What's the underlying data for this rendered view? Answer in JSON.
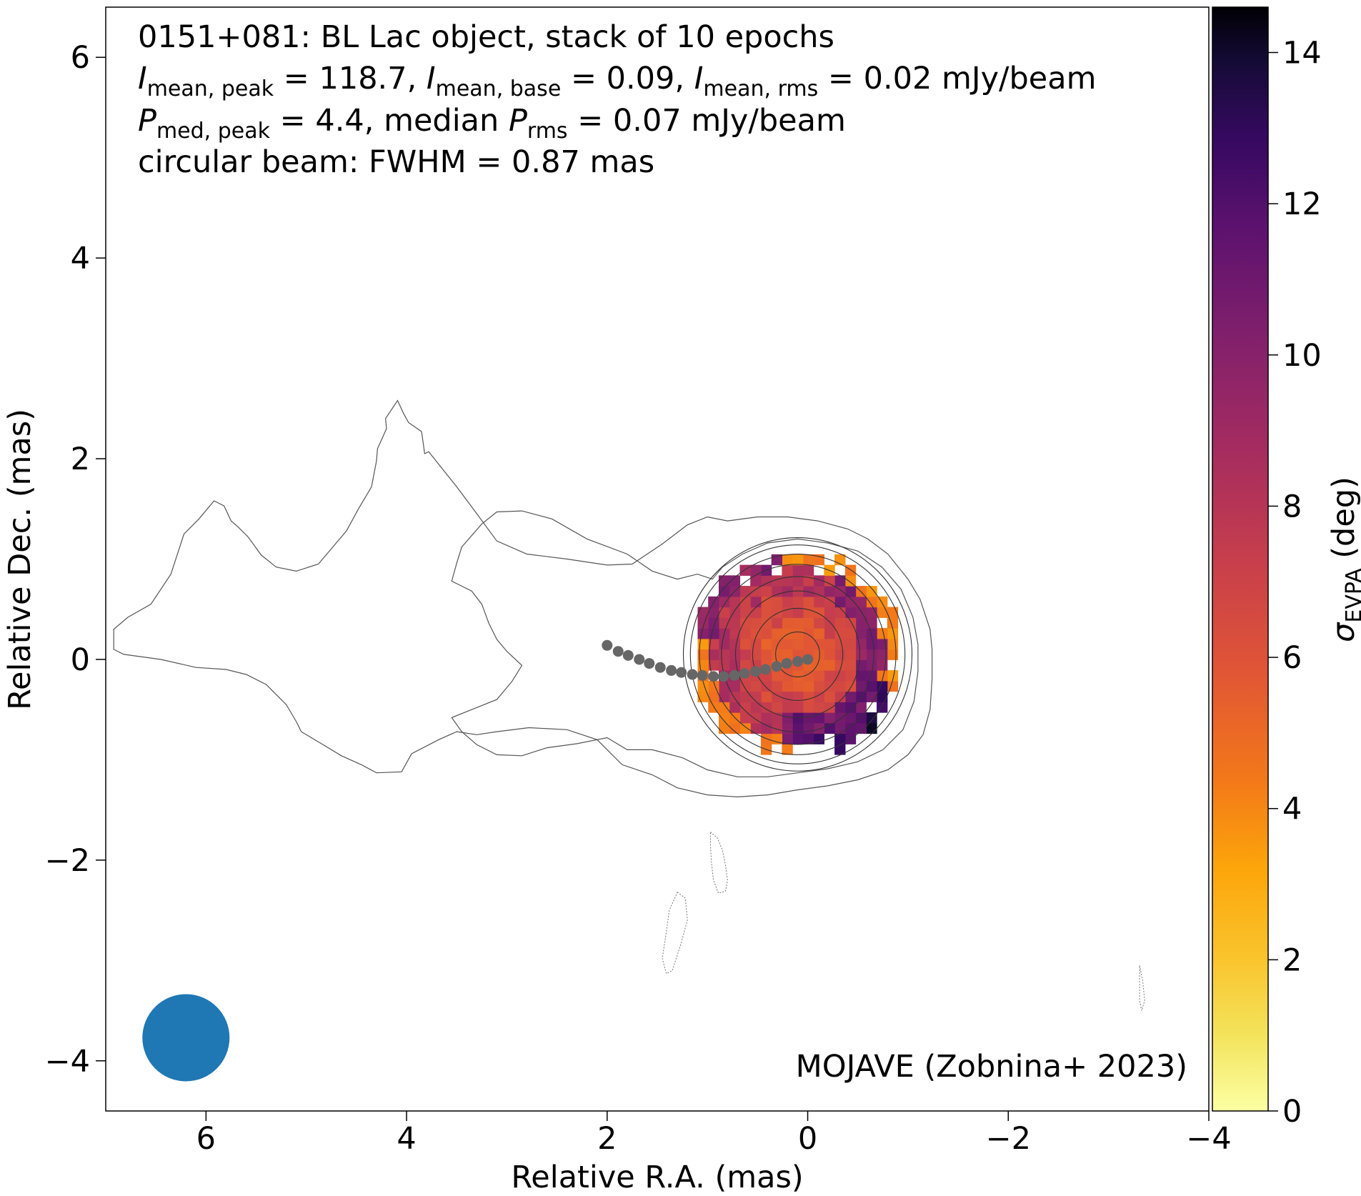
{
  "chart_data": {
    "type": "heatmap",
    "title_lines": {
      "line1": "0151+081: BL Lac object, stack of 10 epochs",
      "line2": {
        "sym": "I",
        "sub1": "mean, peak",
        "val1": " = 118.7, ",
        "sub2": "mean, base",
        "val2": " = 0.09, ",
        "sub3": "mean, rms",
        "val3": " = 0.02 mJy/beam"
      },
      "line3": {
        "sym": "P",
        "sub1": "med, peak",
        "val1": " = 4.4, median ",
        "sub2": "rms",
        "val2": " = 0.07 mJy/beam"
      },
      "line4": "circular beam: FWHM = 0.87 mas"
    },
    "credit": "MOJAVE (Zobnina+ 2023)",
    "xlabel": "Relative R.A. (mas)",
    "ylabel": "Relative Dec. (mas)",
    "xlim": [
      7,
      -4
    ],
    "ylim": [
      -4.5,
      6.5
    ],
    "xticks": [
      6,
      4,
      2,
      0,
      -2,
      -4
    ],
    "yticks": [
      -4,
      -2,
      0,
      2,
      4,
      6
    ],
    "colorbar": {
      "label_sym": "σ",
      "label_sub": "EVPA",
      "label_unit": " (deg)",
      "range": [
        0,
        14.6
      ],
      "ticks": [
        0,
        2,
        4,
        6,
        8,
        10,
        12,
        14
      ],
      "colormap": "inferno_r"
    },
    "beam": {
      "fwhm_mas": 0.87,
      "x": 6.2,
      "y": -3.77,
      "color": "#1f77b4"
    },
    "ridgeline": {
      "color": "#666666",
      "points": [
        [
          2.0,
          0.14
        ],
        [
          1.89,
          0.08
        ],
        [
          1.79,
          0.04
        ],
        [
          1.68,
          0.0
        ],
        [
          1.58,
          -0.04
        ],
        [
          1.47,
          -0.08
        ],
        [
          1.36,
          -0.11
        ],
        [
          1.26,
          -0.13
        ],
        [
          1.15,
          -0.15
        ],
        [
          1.05,
          -0.16
        ],
        [
          0.94,
          -0.17
        ],
        [
          0.84,
          -0.17
        ],
        [
          0.73,
          -0.16
        ],
        [
          0.63,
          -0.14
        ],
        [
          0.52,
          -0.12
        ],
        [
          0.42,
          -0.1
        ],
        [
          0.31,
          -0.07
        ],
        [
          0.21,
          -0.04
        ],
        [
          0.1,
          -0.02
        ],
        [
          0.0,
          0.0
        ]
      ]
    },
    "core": {
      "x": 0.1,
      "y": 0.05
    },
    "core_contour_radii": [
      0.22,
      0.45,
      0.62,
      0.76,
      0.88,
      0.98,
      1.07,
      1.14
    ],
    "dashed_contours": [
      [
        [
          0.97,
          -1.72
        ],
        [
          0.9,
          -1.78
        ],
        [
          0.85,
          -1.9
        ],
        [
          0.82,
          -2.05
        ],
        [
          0.8,
          -2.2
        ],
        [
          0.82,
          -2.31
        ],
        [
          0.89,
          -2.33
        ],
        [
          0.94,
          -2.2
        ],
        [
          0.96,
          -2.02
        ],
        [
          0.97,
          -1.85
        ]
      ],
      [
        [
          1.3,
          -2.32
        ],
        [
          1.22,
          -2.38
        ],
        [
          1.2,
          -2.6
        ],
        [
          1.26,
          -2.82
        ],
        [
          1.35,
          -3.1
        ],
        [
          1.41,
          -3.13
        ],
        [
          1.45,
          -2.98
        ],
        [
          1.41,
          -2.72
        ],
        [
          1.38,
          -2.5
        ]
      ],
      [
        [
          -3.31,
          -3.05
        ],
        [
          -3.34,
          -3.2
        ],
        [
          -3.36,
          -3.4
        ],
        [
          -3.33,
          -3.5
        ],
        [
          -3.31,
          -3.4
        ],
        [
          -3.31,
          -3.2
        ]
      ]
    ],
    "outer_contour": [
      [
        0.8,
        1.38
      ],
      [
        1.0,
        1.42
      ],
      [
        1.2,
        1.34
      ],
      [
        1.45,
        1.15
      ],
      [
        1.75,
        0.95
      ],
      [
        2.0,
        0.94
      ],
      [
        2.4,
        1.0
      ],
      [
        2.8,
        1.05
      ],
      [
        3.1,
        1.18
      ],
      [
        3.35,
        1.52
      ],
      [
        3.5,
        1.72
      ],
      [
        3.78,
        2.07
      ],
      [
        3.82,
        2.05
      ],
      [
        3.85,
        2.27
      ],
      [
        3.98,
        2.36
      ],
      [
        4.03,
        2.45
      ],
      [
        4.09,
        2.58
      ],
      [
        4.21,
        2.4
      ],
      [
        4.2,
        2.3
      ],
      [
        4.29,
        2.1
      ],
      [
        4.3,
        1.98
      ],
      [
        4.35,
        1.72
      ],
      [
        4.48,
        1.5
      ],
      [
        4.6,
        1.28
      ],
      [
        4.88,
        0.95
      ],
      [
        5.1,
        0.88
      ],
      [
        5.3,
        0.92
      ],
      [
        5.45,
        1.04
      ],
      [
        5.58,
        1.22
      ],
      [
        5.68,
        1.32
      ],
      [
        5.75,
        1.38
      ],
      [
        5.82,
        1.53
      ],
      [
        5.92,
        1.58
      ],
      [
        6.07,
        1.4
      ],
      [
        6.22,
        1.25
      ],
      [
        6.35,
        0.85
      ],
      [
        6.55,
        0.55
      ],
      [
        6.78,
        0.42
      ],
      [
        6.92,
        0.3
      ],
      [
        6.92,
        0.1
      ],
      [
        6.82,
        0.05
      ],
      [
        6.45,
        0.0
      ],
      [
        6.1,
        -0.08
      ],
      [
        5.8,
        -0.1
      ],
      [
        5.6,
        -0.15
      ],
      [
        5.4,
        -0.25
      ],
      [
        5.2,
        -0.45
      ],
      [
        5.1,
        -0.62
      ],
      [
        5.05,
        -0.72
      ],
      [
        4.85,
        -0.84
      ],
      [
        4.65,
        -0.96
      ],
      [
        4.45,
        -1.05
      ],
      [
        4.3,
        -1.13
      ],
      [
        4.05,
        -1.12
      ],
      [
        3.95,
        -0.94
      ],
      [
        3.68,
        -0.8
      ],
      [
        3.5,
        -0.72
      ],
      [
        3.3,
        -0.75
      ],
      [
        3.1,
        -0.72
      ],
      [
        2.78,
        -0.68
      ],
      [
        2.4,
        -0.7
      ],
      [
        2.1,
        -0.8
      ],
      [
        1.85,
        -1.05
      ],
      [
        1.55,
        -1.15
      ],
      [
        1.3,
        -1.28
      ],
      [
        1.0,
        -1.35
      ],
      [
        0.7,
        -1.37
      ],
      [
        0.4,
        -1.35
      ],
      [
        0.1,
        -1.3
      ],
      [
        -0.2,
        -1.26
      ],
      [
        -0.5,
        -1.2
      ],
      [
        -0.8,
        -1.1
      ],
      [
        -1.0,
        -0.95
      ],
      [
        -1.15,
        -0.75
      ],
      [
        -1.22,
        -0.5
      ],
      [
        -1.24,
        -0.2
      ],
      [
        -1.24,
        0.1
      ],
      [
        -1.22,
        0.3
      ],
      [
        -1.12,
        0.6
      ],
      [
        -1.0,
        0.8
      ],
      [
        -0.8,
        1.05
      ],
      [
        -0.6,
        1.2
      ],
      [
        -0.4,
        1.3
      ],
      [
        -0.1,
        1.38
      ],
      [
        0.2,
        1.42
      ],
      [
        0.5,
        1.42
      ]
    ],
    "second_contour": [
      [
        0.95,
        0.8
      ],
      [
        1.1,
        0.85
      ],
      [
        1.3,
        0.8
      ],
      [
        1.55,
        0.88
      ],
      [
        1.8,
        1.05
      ],
      [
        2.2,
        1.2
      ],
      [
        2.55,
        1.4
      ],
      [
        2.85,
        1.48
      ],
      [
        3.1,
        1.47
      ],
      [
        3.25,
        1.35
      ],
      [
        3.45,
        1.12
      ],
      [
        3.5,
        0.96
      ],
      [
        3.55,
        0.78
      ],
      [
        3.35,
        0.68
      ],
      [
        3.25,
        0.55
      ],
      [
        3.18,
        0.36
      ],
      [
        3.1,
        0.2
      ],
      [
        3.0,
        0.08
      ],
      [
        2.85,
        -0.06
      ],
      [
        2.95,
        -0.22
      ],
      [
        3.1,
        -0.4
      ],
      [
        3.35,
        -0.5
      ],
      [
        3.55,
        -0.58
      ],
      [
        3.45,
        -0.72
      ],
      [
        3.3,
        -0.85
      ],
      [
        3.1,
        -0.95
      ],
      [
        2.85,
        -0.96
      ],
      [
        2.6,
        -0.88
      ],
      [
        2.3,
        -0.84
      ],
      [
        2.0,
        -0.78
      ],
      [
        1.8,
        -0.9
      ],
      [
        1.55,
        -0.9
      ],
      [
        1.25,
        -0.98
      ],
      [
        1.0,
        -1.1
      ],
      [
        0.7,
        -1.17
      ],
      [
        0.4,
        -1.17
      ],
      [
        0.1,
        -1.13
      ],
      [
        -0.2,
        -1.09
      ],
      [
        -0.5,
        -1.02
      ],
      [
        -0.75,
        -0.9
      ],
      [
        -0.95,
        -0.7
      ],
      [
        -1.06,
        -0.42
      ],
      [
        -1.1,
        -0.12
      ],
      [
        -1.1,
        0.15
      ],
      [
        -1.05,
        0.42
      ],
      [
        -0.93,
        0.7
      ],
      [
        -0.74,
        0.92
      ],
      [
        -0.5,
        1.08
      ],
      [
        -0.2,
        1.16
      ],
      [
        0.1,
        1.2
      ],
      [
        0.4,
        1.16
      ],
      [
        0.65,
        1.05
      ],
      [
        0.85,
        0.92
      ]
    ]
  }
}
